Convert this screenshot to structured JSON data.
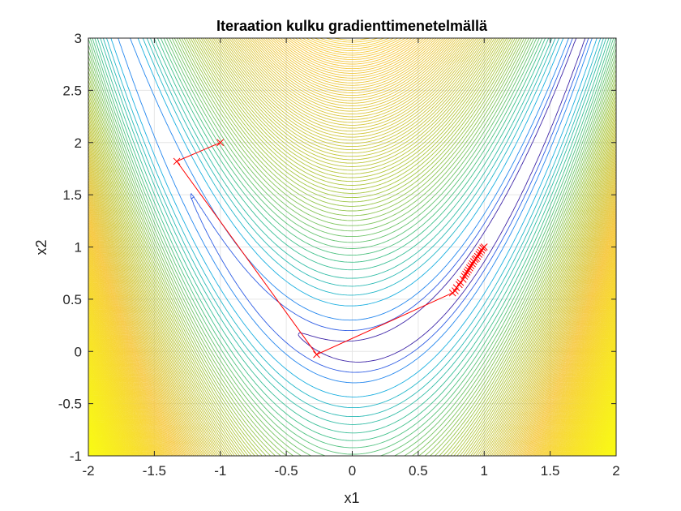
{
  "chart_data": {
    "type": "contour",
    "title": "Iteraation kulku gradienttimenetelmällä",
    "xlabel": "x1",
    "ylabel": "x2",
    "xlim": [
      -2,
      2
    ],
    "ylim": [
      -1,
      3
    ],
    "xticks": [
      "-2",
      "-1.5",
      "-1",
      "-0.5",
      "0",
      "0.5",
      "1",
      "1.5",
      "2"
    ],
    "yticks": [
      "-1",
      "-0.5",
      "0",
      "0.5",
      "1",
      "1.5",
      "2",
      "2.5",
      "3"
    ],
    "grid": true,
    "contour": {
      "function": "100*(x2 - x1^2)^2 + (1 - x1)^2",
      "levels_low": [
        2,
        5,
        10,
        20,
        30,
        40
      ],
      "levels_step": 12,
      "levels_max": 2500,
      "colormap": [
        "#3e26a8",
        "#2c6ff6",
        "#19b3df",
        "#3ec18e",
        "#a9c740",
        "#f6c73c",
        "#f9fb14"
      ]
    },
    "iteration_path": {
      "color": "#ff0000",
      "marker": "x",
      "points": [
        [
          -1.0,
          2.0
        ],
        [
          -1.33,
          1.82
        ],
        [
          -0.27,
          -0.03
        ],
        [
          0.76,
          0.56
        ],
        [
          0.78,
          0.58
        ],
        [
          0.79,
          0.61
        ],
        [
          0.81,
          0.64
        ],
        [
          0.82,
          0.66
        ],
        [
          0.84,
          0.69
        ],
        [
          0.85,
          0.72
        ],
        [
          0.86,
          0.74
        ],
        [
          0.87,
          0.76
        ],
        [
          0.88,
          0.78
        ],
        [
          0.89,
          0.8
        ],
        [
          0.9,
          0.82
        ],
        [
          0.91,
          0.84
        ],
        [
          0.92,
          0.86
        ],
        [
          0.93,
          0.88
        ],
        [
          0.94,
          0.89
        ],
        [
          0.95,
          0.91
        ],
        [
          0.96,
          0.93
        ],
        [
          0.97,
          0.95
        ],
        [
          0.98,
          0.97
        ],
        [
          0.99,
          0.99
        ],
        [
          1.0,
          1.0
        ]
      ]
    }
  }
}
